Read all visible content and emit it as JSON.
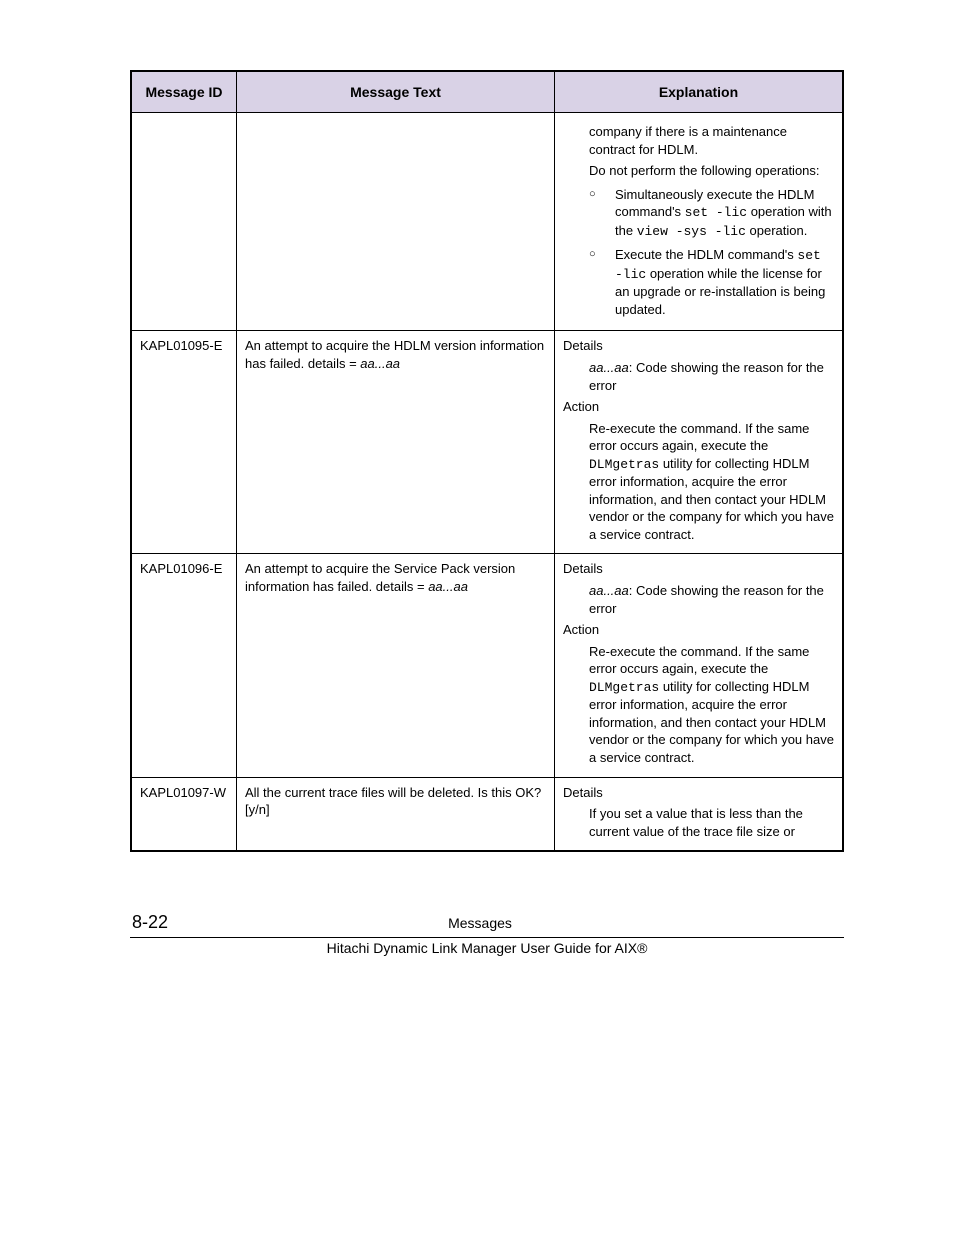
{
  "table": {
    "headers": {
      "id": "Message ID",
      "text": "Message Text",
      "expl": "Explanation"
    },
    "rows": [
      {
        "id": "",
        "text": "",
        "expl_html": "<div class=\"indent-1\">company if there is a maintenance contract for HDLM.</div><div class=\"indent-1\">Do not perform the following operations:</div><ul class=\"bullet-list\"><li><span class=\"bmark\">○</span>Simultaneously execute the HDLM command's <span class=\"mono\">set -lic</span> operation with the <span class=\"mono\">view -sys -lic</span> operation.</li><li><span class=\"bmark\">○</span>Execute the HDLM command's <span class=\"mono\">set -lic</span> operation while the license for an upgrade or re-installation is being updated.</li></ul>"
      },
      {
        "id": "KAPL01095-E",
        "text_html": "An attempt to acquire the HDLM version information has failed. details = <span class=\"ital\">aa...aa</span>",
        "expl_html": "<div>Details</div><div class=\"indent-1\"><span class=\"ital\">aa...aa</span>: Code showing the reason for the error</div><div>Action</div><div class=\"indent-1\">Re-execute the command. If the same error occurs again, execute the <span class=\"mono\">DLMgetras</span> utility for collecting HDLM error information, acquire the error information, and then contact your HDLM vendor or the company for which you have a service contract.</div>"
      },
      {
        "id": "KAPL01096-E",
        "text_html": "An attempt to acquire the Service Pack version information has failed. details = <span class=\"ital\">aa...aa</span>",
        "expl_html": "<div>Details</div><div class=\"indent-1\"><span class=\"ital\">aa...aa</span>: Code showing the reason for the error</div><div>Action</div><div class=\"indent-1\">Re-execute the command. If the same error occurs again, execute the <span class=\"mono\">DLMgetras</span> utility for collecting HDLM error information, acquire the error information, and then contact your HDLM vendor or the company for which you have a service contract.</div>"
      },
      {
        "id": "KAPL01097-W",
        "text_html": "All the current trace files will be deleted. Is this OK? [y/n]",
        "expl_html": "<div>Details</div><div class=\"indent-1\">If you set a value that is less than the current value of the trace file size or</div>"
      }
    ]
  },
  "footer": {
    "page_no": "8-22",
    "section": "Messages",
    "guide": "Hitachi Dynamic Link Manager User Guide for AIX®"
  }
}
